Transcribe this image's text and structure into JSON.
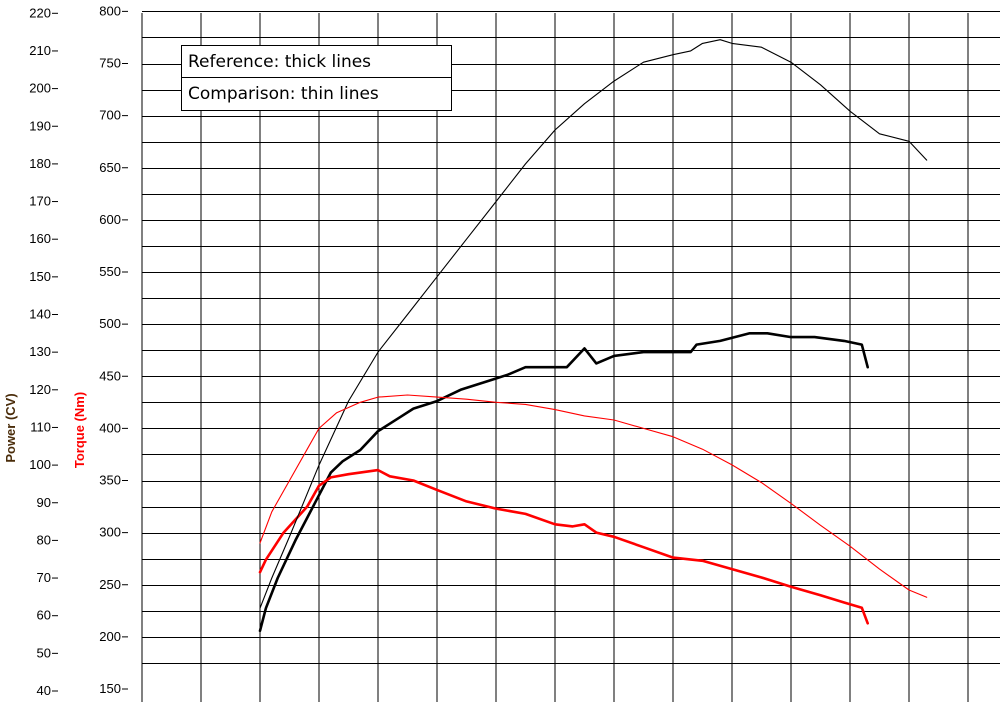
{
  "chart_data": {
    "type": "line",
    "legend": {
      "entries": [
        "Reference: thick lines",
        "Comparison: thin lines"
      ]
    },
    "axes": {
      "power": {
        "label": "Power (CV)",
        "color": "#000000",
        "range": [
          40,
          220
        ],
        "ticks": [
          40,
          50,
          60,
          70,
          80,
          90,
          100,
          110,
          120,
          130,
          140,
          150,
          160,
          170,
          180,
          190,
          200,
          210,
          220
        ]
      },
      "torque": {
        "label": "Torque (Nm)",
        "color": "#ff0000",
        "range": [
          150,
          800
        ],
        "ticks": [
          150,
          200,
          250,
          300,
          350,
          400,
          450,
          500,
          550,
          600,
          650,
          700,
          750,
          800
        ]
      }
    },
    "x": {
      "range": [
        0,
        14.5
      ],
      "grid_lines": 15,
      "tick_labels": false
    },
    "grid": true,
    "series": [
      {
        "style": "thick",
        "axis": "power",
        "color": "#000000",
        "points": [
          [
            2.0,
            56
          ],
          [
            2.1,
            62
          ],
          [
            2.3,
            70
          ],
          [
            2.6,
            80
          ],
          [
            3.0,
            92
          ],
          [
            3.2,
            98
          ],
          [
            3.4,
            101
          ],
          [
            3.7,
            104
          ],
          [
            4.0,
            109
          ],
          [
            4.2,
            111
          ],
          [
            4.4,
            113
          ],
          [
            4.6,
            115
          ],
          [
            5.0,
            117
          ],
          [
            5.4,
            120
          ],
          [
            5.8,
            122
          ],
          [
            6.2,
            124
          ],
          [
            6.5,
            126
          ],
          [
            6.8,
            126
          ],
          [
            7.2,
            126
          ],
          [
            7.5,
            131
          ],
          [
            7.7,
            127
          ],
          [
            8.0,
            129
          ],
          [
            8.5,
            130
          ],
          [
            9.0,
            130
          ],
          [
            9.3,
            130
          ],
          [
            9.4,
            132
          ],
          [
            9.8,
            133
          ],
          [
            10.3,
            135
          ],
          [
            10.6,
            135
          ],
          [
            11.0,
            134
          ],
          [
            11.4,
            134
          ],
          [
            11.9,
            133
          ],
          [
            12.2,
            132
          ],
          [
            12.3,
            126
          ]
        ]
      },
      {
        "style": "thick",
        "axis": "torque",
        "color": "#ff0000",
        "points": [
          [
            2.0,
            262
          ],
          [
            2.1,
            274
          ],
          [
            2.4,
            300
          ],
          [
            2.8,
            325
          ],
          [
            3.0,
            345
          ],
          [
            3.2,
            353
          ],
          [
            3.5,
            356
          ],
          [
            4.0,
            360
          ],
          [
            4.2,
            354
          ],
          [
            4.6,
            350
          ],
          [
            5.0,
            341
          ],
          [
            5.5,
            330
          ],
          [
            6.0,
            323
          ],
          [
            6.5,
            318
          ],
          [
            7.0,
            308
          ],
          [
            7.3,
            306
          ],
          [
            7.5,
            308
          ],
          [
            7.7,
            300
          ],
          [
            8.0,
            296
          ],
          [
            8.5,
            286
          ],
          [
            9.0,
            276
          ],
          [
            9.5,
            273
          ],
          [
            10.0,
            265
          ],
          [
            10.5,
            257
          ],
          [
            11.0,
            248
          ],
          [
            11.5,
            240
          ],
          [
            11.9,
            233
          ],
          [
            12.2,
            228
          ],
          [
            12.3,
            213
          ]
        ]
      },
      {
        "style": "thin",
        "axis": "power",
        "color": "#000000",
        "points": [
          [
            2.0,
            62
          ],
          [
            2.2,
            70
          ],
          [
            2.5,
            81
          ],
          [
            3.0,
            100
          ],
          [
            3.5,
            117
          ],
          [
            4.0,
            130
          ],
          [
            4.5,
            140
          ],
          [
            5.0,
            150
          ],
          [
            5.5,
            160
          ],
          [
            6.0,
            170
          ],
          [
            6.5,
            180
          ],
          [
            7.0,
            189
          ],
          [
            7.5,
            196
          ],
          [
            8.0,
            202
          ],
          [
            8.5,
            207
          ],
          [
            9.0,
            209
          ],
          [
            9.3,
            210
          ],
          [
            9.5,
            212
          ],
          [
            9.8,
            213
          ],
          [
            10.0,
            212
          ],
          [
            10.5,
            211
          ],
          [
            11.0,
            207
          ],
          [
            11.5,
            201
          ],
          [
            12.0,
            194
          ],
          [
            12.5,
            188
          ],
          [
            13.0,
            186
          ],
          [
            13.3,
            181
          ]
        ]
      },
      {
        "style": "thin",
        "axis": "torque",
        "color": "#ff0000",
        "points": [
          [
            2.0,
            290
          ],
          [
            2.2,
            320
          ],
          [
            2.5,
            350
          ],
          [
            2.8,
            380
          ],
          [
            3.0,
            400
          ],
          [
            3.3,
            415
          ],
          [
            3.7,
            425
          ],
          [
            4.0,
            430
          ],
          [
            4.5,
            432
          ],
          [
            5.0,
            430
          ],
          [
            5.5,
            428
          ],
          [
            6.0,
            425
          ],
          [
            6.5,
            423
          ],
          [
            7.0,
            418
          ],
          [
            7.5,
            412
          ],
          [
            8.0,
            408
          ],
          [
            8.5,
            400
          ],
          [
            9.0,
            392
          ],
          [
            9.5,
            380
          ],
          [
            10.0,
            365
          ],
          [
            10.5,
            348
          ],
          [
            11.0,
            328
          ],
          [
            11.5,
            307
          ],
          [
            12.0,
            287
          ],
          [
            12.5,
            265
          ],
          [
            13.0,
            245
          ],
          [
            13.3,
            238
          ]
        ]
      }
    ]
  }
}
